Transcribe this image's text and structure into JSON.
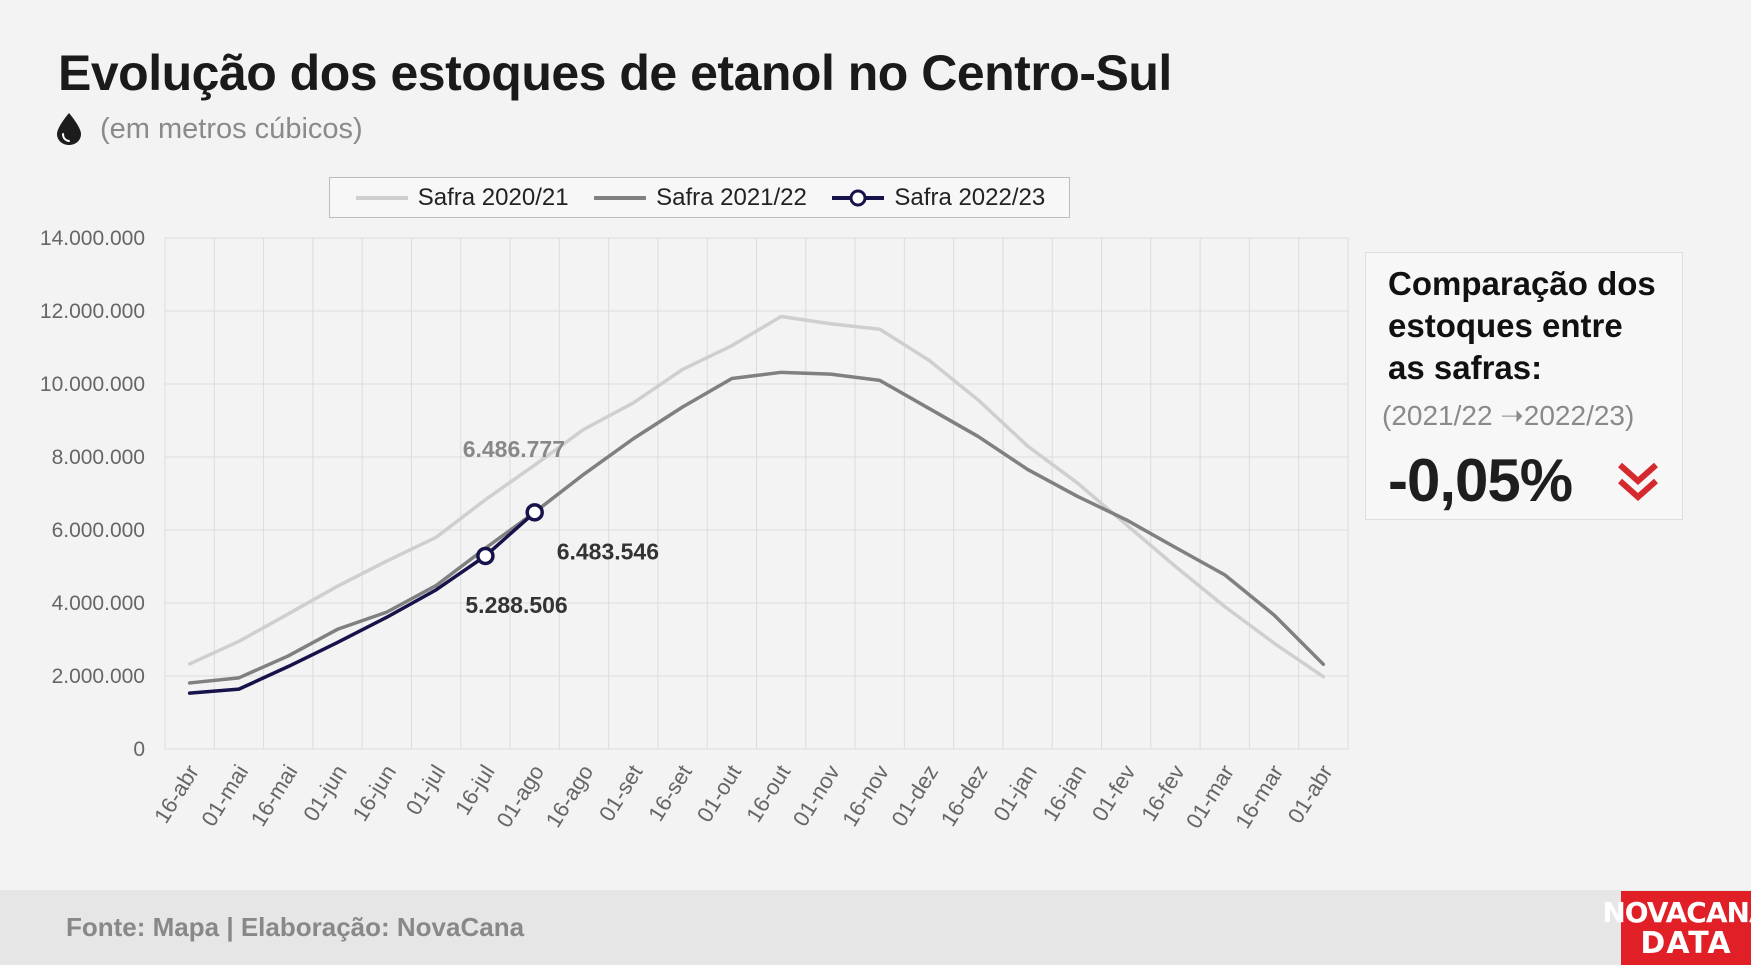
{
  "header": {
    "title": "Evolução dos estoques de etanol no Centro-Sul",
    "subtitle": "(em metros cúbicos)",
    "subtitle_icon": "drop-icon"
  },
  "chart_data": {
    "type": "line",
    "title": "Evolução dos estoques de etanol no Centro-Sul",
    "ylabel": "",
    "xlabel": "",
    "ylim": [
      0,
      14000000
    ],
    "y_ticks": [
      0,
      2000000,
      4000000,
      6000000,
      8000000,
      10000000,
      12000000,
      14000000
    ],
    "y_tick_labels": [
      "0",
      "2.000.000",
      "4.000.000",
      "6.000.000",
      "8.000.000",
      "10.000.000",
      "12.000.000",
      "14.000.000"
    ],
    "grid": true,
    "legend_position": "top",
    "categories": [
      "16-abr",
      "01-mai",
      "16-mai",
      "01-jun",
      "16-jun",
      "01-jul",
      "16-jul",
      "01-ago",
      "16-ago",
      "01-set",
      "16-set",
      "01-out",
      "16-out",
      "01-nov",
      "16-nov",
      "01-dez",
      "16-dez",
      "01-jan",
      "16-jan",
      "01-fev",
      "16-fev",
      "01-mar",
      "16-mar",
      "01-abr"
    ],
    "series": [
      {
        "name": "Safra 2020/21",
        "color": "#cfcfcf",
        "values": [
          2330000,
          2950000,
          3700000,
          4460000,
          5150000,
          5800000,
          6830000,
          7780000,
          8760000,
          9480000,
          10400000,
          11050000,
          11850000,
          11650000,
          11500000,
          10650000,
          9560000,
          8300000,
          7300000,
          6150000,
          5000000,
          3900000,
          2900000,
          1980000
        ]
      },
      {
        "name": "Safra 2021/22",
        "color": "#808080",
        "values": [
          1810000,
          1950000,
          2550000,
          3280000,
          3750000,
          4480000,
          5500000,
          6486777,
          7530000,
          8500000,
          9370000,
          10150000,
          10320000,
          10270000,
          10100000,
          9330000,
          8560000,
          7660000,
          6930000,
          6280000,
          5520000,
          4770000,
          3670000,
          2320000
        ]
      },
      {
        "name": "Safra 2022/23",
        "color": "#16124a",
        "values": [
          1530000,
          1640000,
          2260000,
          2920000,
          3610000,
          4360000,
          5288506,
          6483546,
          null,
          null,
          null,
          null,
          null,
          null,
          null,
          null,
          null,
          null,
          null,
          null,
          null,
          null,
          null,
          null
        ]
      }
    ],
    "annotations": [
      {
        "label": "6.486.777",
        "series": "Safra 2021/22",
        "category": "01-ago",
        "color": "#888888"
      },
      {
        "label": "6.483.546",
        "series": "Safra 2022/23",
        "category": "01-ago",
        "color": "#333333"
      },
      {
        "label": "5.288.506",
        "series": "Safra 2022/23",
        "category": "16-jul",
        "color": "#333333"
      }
    ]
  },
  "comparison": {
    "heading": "Comparação dos estoques entre as safras:",
    "period": "(2021/22 ➝2022/23)",
    "value": "-0,05%",
    "trend_icon": "double-chevron-down-icon",
    "trend_color": "#d42a2f"
  },
  "footer": {
    "source": "Fonte: Mapa | Elaboração: NovaCana",
    "logo_line1": "NOVACANA",
    "logo_line2": "DATA"
  }
}
